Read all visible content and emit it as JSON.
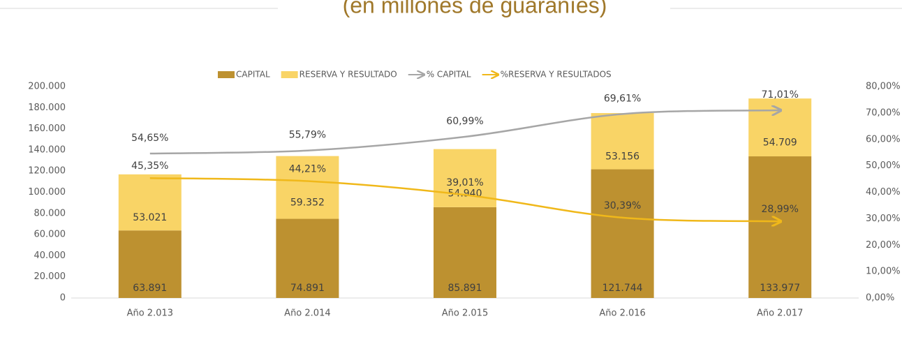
{
  "chart_data": {
    "type": "bar",
    "stacked": true,
    "title": "(en millones de guaraníes)",
    "categories": [
      "Año  2.013",
      "Año  2.014",
      "Año  2.015",
      "Año  2.016",
      "Año  2.017"
    ],
    "series": [
      {
        "name": "CAPITAL",
        "type": "bar",
        "color": "#bd9130",
        "values": [
          63891,
          74891,
          85891,
          121744,
          133977
        ],
        "value_labels": [
          "63.891",
          "74.891",
          "85.891",
          "121.744",
          "133.977"
        ]
      },
      {
        "name": "RESERVA Y RESULTADO",
        "type": "bar",
        "color": "#f9d466",
        "values": [
          53021,
          59352,
          54940,
          53156,
          54709
        ],
        "value_labels": [
          "53.021",
          "59.352",
          "54.940",
          "53.156",
          "54.709"
        ]
      },
      {
        "name": "% CAPITAL",
        "type": "line",
        "axis": "y2",
        "color": "#a6a6a6",
        "values": [
          54.65,
          55.79,
          60.99,
          69.61,
          71.01
        ],
        "value_labels": [
          "54,65%",
          "55,79%",
          "60,99%",
          "69,61%",
          "71,01%"
        ]
      },
      {
        "name": "%RESERVA Y RESULTADOS",
        "type": "line",
        "axis": "y2",
        "color": "#f0b81a",
        "values": [
          45.35,
          44.21,
          39.01,
          30.39,
          28.99
        ],
        "value_labels": [
          "45,35%",
          "44,21%",
          "39,01%",
          "30,39%",
          "28,99%"
        ]
      }
    ],
    "ylim": [
      0,
      200000
    ],
    "yticks": [
      0,
      {
        "value": 20000,
        "label": "20.000"
      },
      {
        "value": 40000,
        "label": "40.000"
      },
      {
        "value": 60000,
        "label": "60.000"
      },
      {
        "value": 80000,
        "label": "80.000"
      },
      {
        "value": 100000,
        "label": "100.000"
      },
      {
        "value": 120000,
        "label": "120.000"
      },
      {
        "value": 140000,
        "label": "140.000"
      },
      {
        "value": 160000,
        "label": "160.000"
      },
      {
        "value": 180000,
        "label": "180.000"
      },
      {
        "value": 200000,
        "label": "200.000"
      }
    ],
    "y2lim": [
      0,
      80
    ],
    "y2ticks": [
      {
        "value": 0,
        "label": "0,00%"
      },
      {
        "value": 10,
        "label": "10,00%"
      },
      {
        "value": 20,
        "label": "20,00%"
      },
      {
        "value": 30,
        "label": "30,00%"
      },
      {
        "value": 40,
        "label": "40,00%"
      },
      {
        "value": 50,
        "label": "50,00%"
      },
      {
        "value": 60,
        "label": "60,00%"
      },
      {
        "value": 70,
        "label": "70,00%"
      },
      {
        "value": 80,
        "label": "80,00%"
      }
    ],
    "grid": false,
    "legend": "top"
  }
}
